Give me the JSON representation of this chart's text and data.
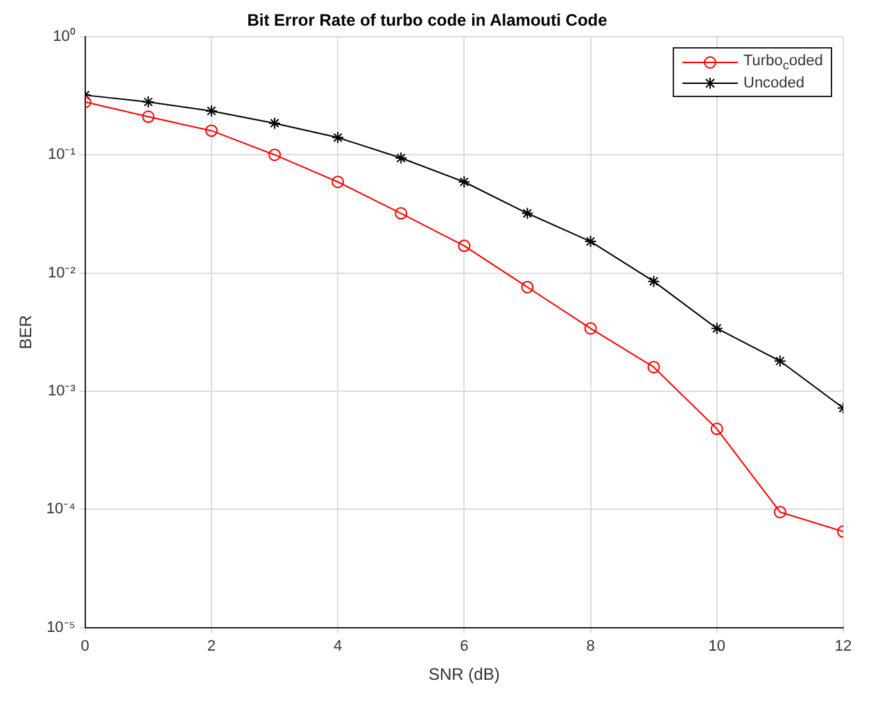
{
  "chart_data": {
    "type": "line",
    "title": "Bit Error Rate of turbo code in Alamouti Code",
    "xlabel": "SNR (dB)",
    "ylabel": "BER",
    "x": [
      0,
      1,
      2,
      3,
      4,
      5,
      6,
      7,
      8,
      9,
      10,
      11,
      12
    ],
    "series": [
      {
        "name": "Turbo$_{c}$oded",
        "color": "#ff0000",
        "marker": "circle",
        "values": [
          0.28,
          0.21,
          0.16,
          0.1,
          0.059,
          0.032,
          0.017,
          0.0076,
          0.0034,
          0.0016,
          0.00048,
          9.5e-05,
          6.5e-05
        ]
      },
      {
        "name": "Uncoded",
        "color": "#000000",
        "marker": "cross",
        "values": [
          0.32,
          0.28,
          0.235,
          0.185,
          0.14,
          0.094,
          0.059,
          0.032,
          0.0185,
          0.0085,
          0.0034,
          0.0018,
          0.00072
        ]
      }
    ],
    "log": "y",
    "xlim": [
      0,
      12
    ],
    "xticks": [
      0,
      2,
      4,
      6,
      8,
      10,
      12
    ],
    "ylim": [
      1e-05,
      1
    ],
    "yticks": [
      {
        "value": 1e-05,
        "label": "10⁻⁵"
      },
      {
        "value": 0.0001,
        "label": "10⁻⁴"
      },
      {
        "value": 0.001,
        "label": "10⁻³"
      },
      {
        "value": 0.01,
        "label": "10⁻²"
      },
      {
        "value": 0.1,
        "label": "10⁻¹"
      },
      {
        "value": 1,
        "label": "10⁰"
      }
    ],
    "grid": true,
    "legend": "top right",
    "line_style": "solid"
  }
}
